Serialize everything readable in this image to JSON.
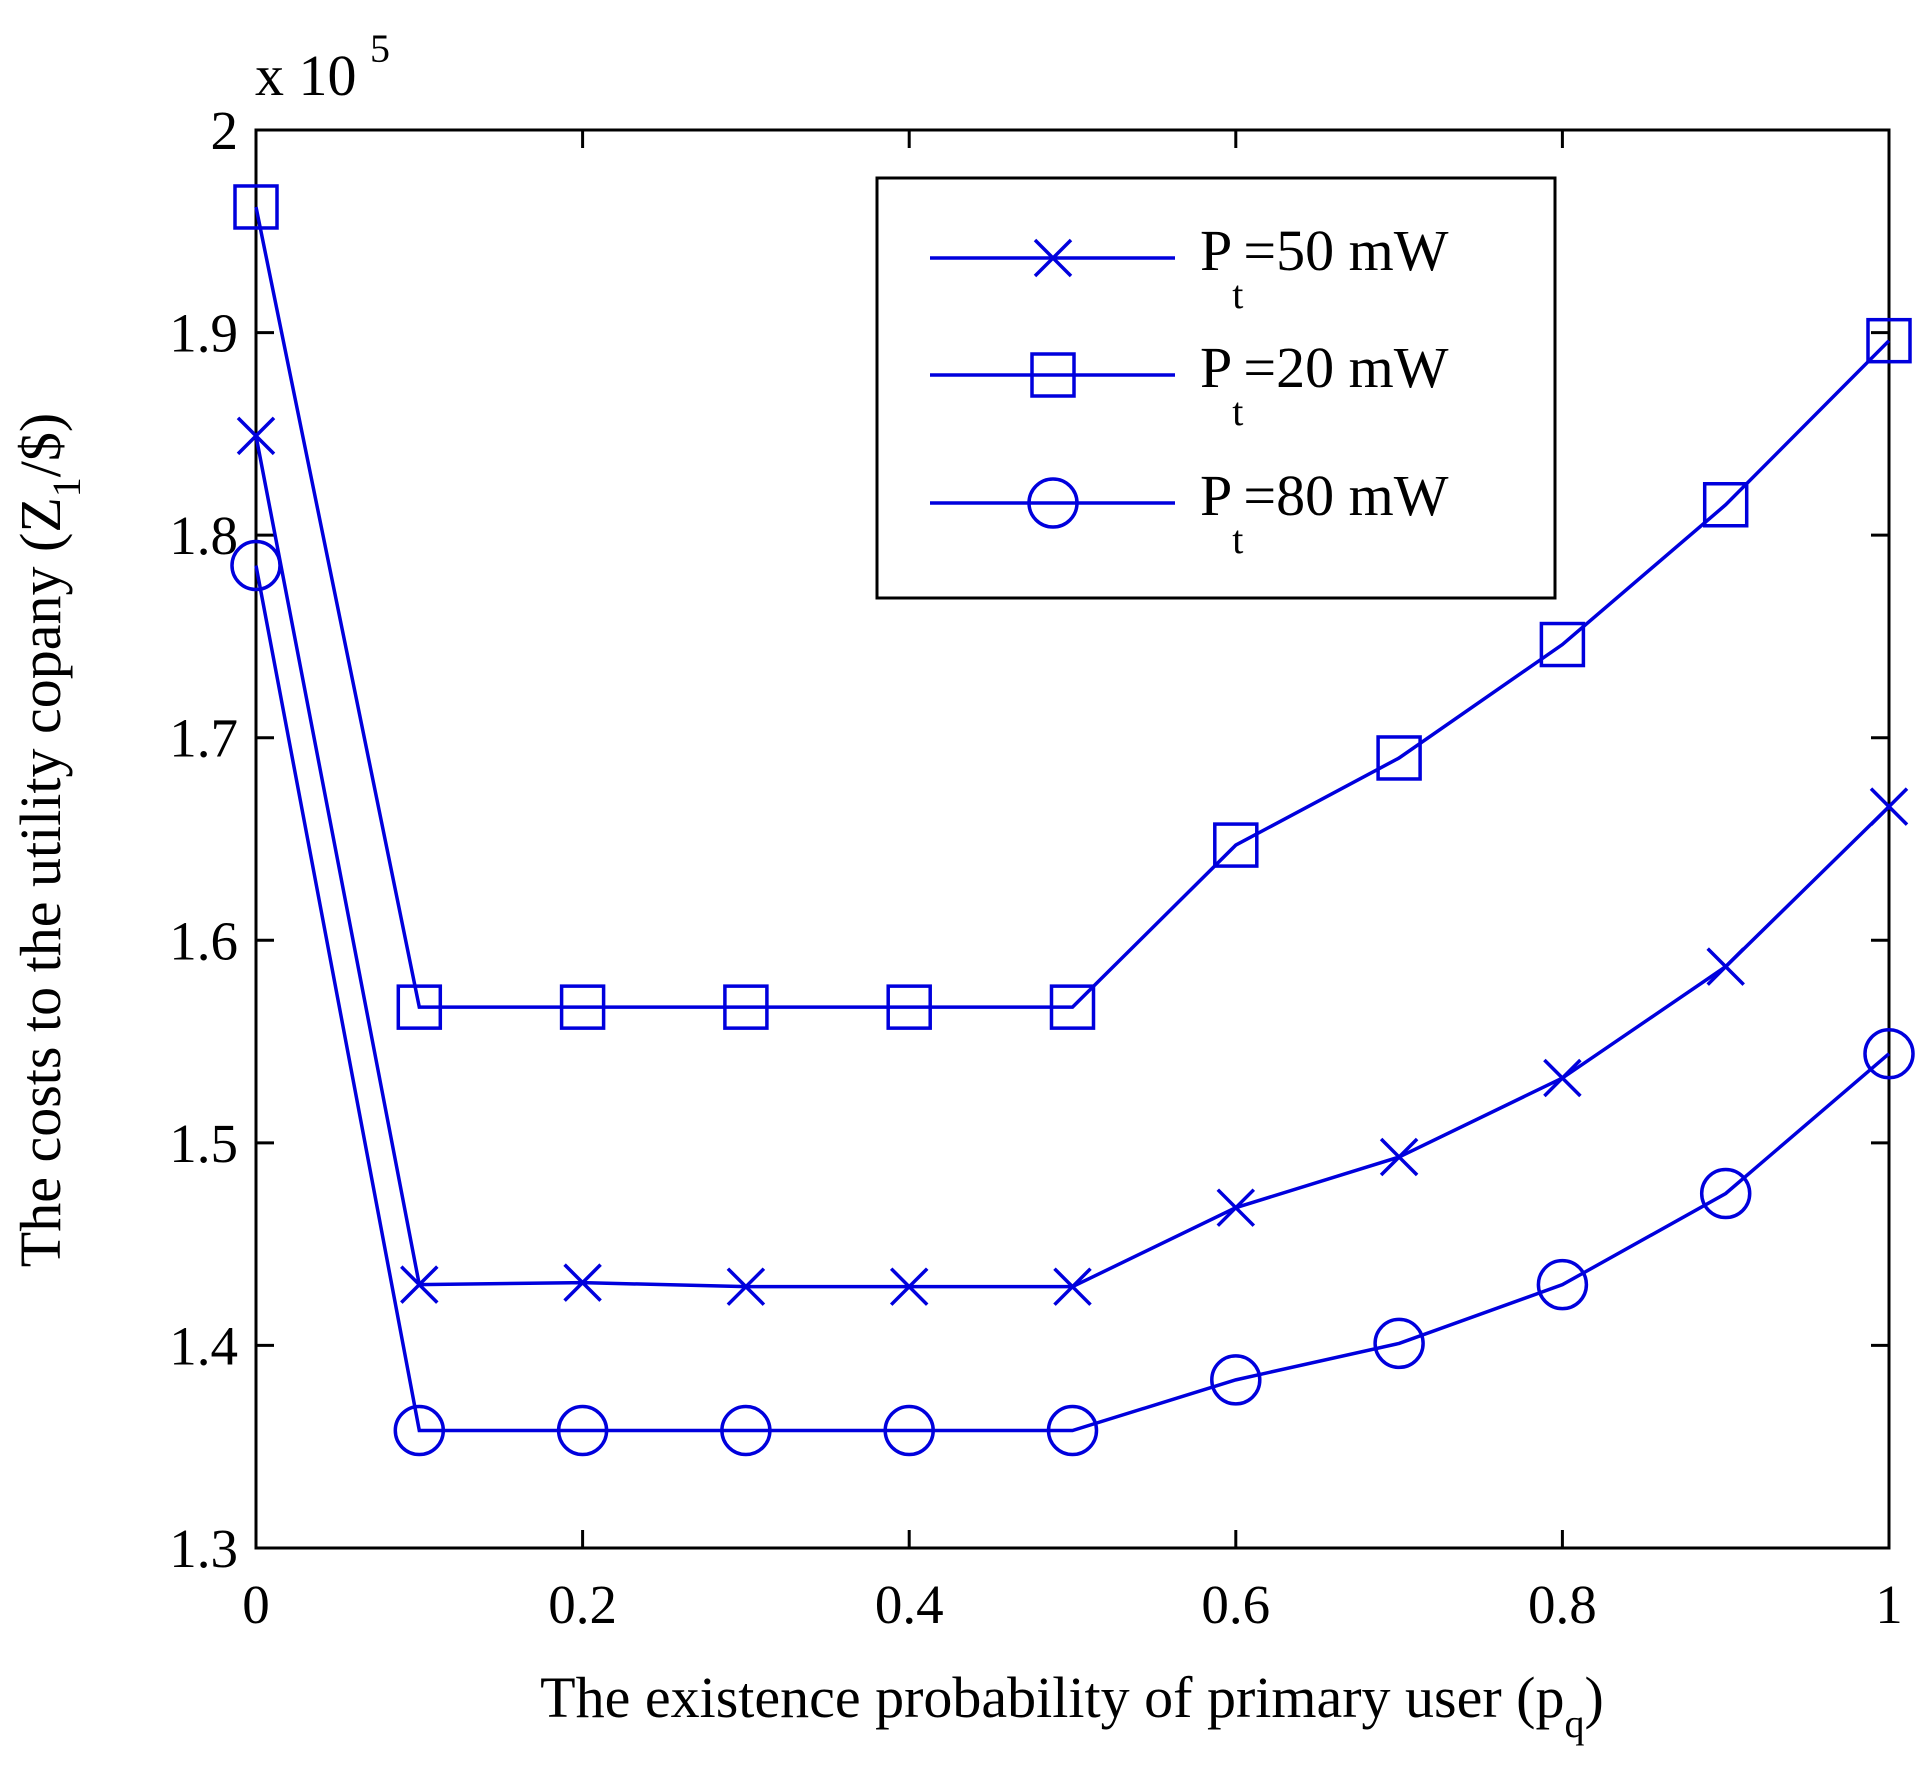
{
  "chart_data": {
    "type": "line",
    "title": "",
    "xlabel": "The existence probability of primary user (p",
    "xlabel_sub": "q",
    "xlabel_close": ")",
    "ylabel": "The costs to the utility copany (Z",
    "ylabel_sub": "1",
    "ylabel_close": "/$)",
    "y_multiplier": "x 10",
    "y_multiplier_exp": "5",
    "xlim": [
      0,
      1
    ],
    "ylim": [
      1.3,
      2.0
    ],
    "xticks": [
      0,
      0.2,
      0.4,
      0.6,
      0.8,
      1
    ],
    "xtick_labels": [
      "0",
      "0.2",
      "0.4",
      "0.6",
      "0.8",
      "1"
    ],
    "yticks": [
      1.3,
      1.4,
      1.5,
      1.6,
      1.7,
      1.8,
      1.9,
      2.0
    ],
    "ytick_labels": [
      "1.3",
      "1.4",
      "1.5",
      "1.6",
      "1.7",
      "1.8",
      "1.9",
      "2"
    ],
    "x": [
      0,
      0.1,
      0.2,
      0.3,
      0.4,
      0.5,
      0.6,
      0.7,
      0.8,
      0.9,
      1.0
    ],
    "series": [
      {
        "name": "P",
        "name_sub": "t",
        "name_rest": "=50 mW",
        "marker": "x",
        "color": "#0000dd",
        "values": [
          1.849,
          1.43,
          1.431,
          1.429,
          1.429,
          1.429,
          1.468,
          1.493,
          1.532,
          1.587,
          1.666
        ]
      },
      {
        "name": "P",
        "name_sub": "t",
        "name_rest": "=20 mW",
        "marker": "square",
        "color": "#0000dd",
        "values": [
          1.962,
          1.567,
          1.567,
          1.567,
          1.567,
          1.567,
          1.647,
          1.69,
          1.746,
          1.815,
          1.896
        ]
      },
      {
        "name": "P",
        "name_sub": "t",
        "name_rest": "=80 mW",
        "marker": "circle",
        "color": "#0000dd",
        "values": [
          1.785,
          1.358,
          1.358,
          1.358,
          1.358,
          1.358,
          1.383,
          1.401,
          1.43,
          1.475,
          1.544
        ]
      }
    ],
    "legend_position": "top-right",
    "grid": false
  }
}
